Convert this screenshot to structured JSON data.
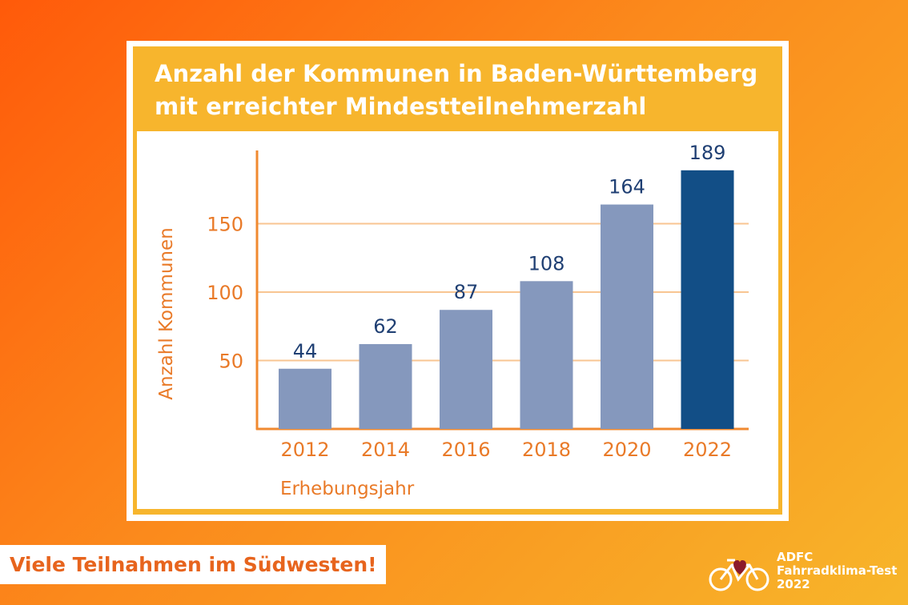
{
  "chart_data": {
    "type": "bar",
    "title_lines": [
      "Anzahl der Kommunen in Baden-Württemberg",
      "mit erreichter Mindestteilnehmerzahl"
    ],
    "categories": [
      "2012",
      "2014",
      "2016",
      "2018",
      "2020",
      "2022"
    ],
    "values": [
      44,
      62,
      87,
      108,
      164,
      189
    ],
    "data_labels": [
      "44",
      "62",
      "87",
      "108",
      "164",
      "189"
    ],
    "xlabel": "Erhebungsjahr",
    "ylabel": "Anzahl Kommunen",
    "yticks": [
      50,
      100,
      150
    ],
    "ytick_labels": [
      "50",
      "100",
      "150"
    ],
    "ylim": [
      0,
      200
    ],
    "grid": "horizontal",
    "legend": "none",
    "colors": {
      "bar": "#8598bd",
      "highlight_bar": "#124e86",
      "axis": "#f08a30",
      "gridline": "#f8c592",
      "data_label": "#1f3f73",
      "tick_label": "#e97a28"
    },
    "highlight_index": 5
  },
  "footer": {
    "tagline": "Viele Teilnahmen im Südwesten!"
  },
  "logo": {
    "icon": "bicycle-heart-icon",
    "line1": "ADFC",
    "line2": "Fahrradklima-Test",
    "line3": "2022"
  }
}
